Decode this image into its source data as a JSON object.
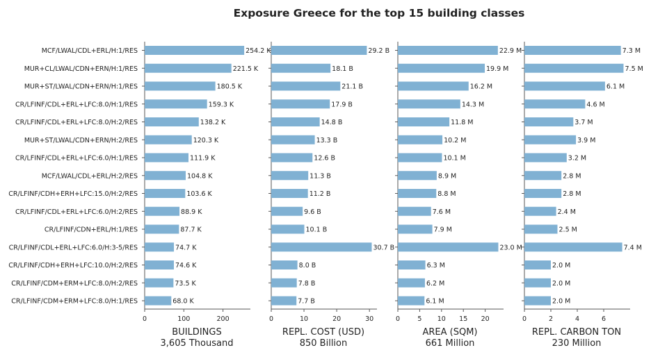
{
  "chart_data": {
    "type": "bar",
    "orientation": "horizontal",
    "title": "Exposure Greece for the top 15 building classes",
    "bar_color": "#80b1d3",
    "categories": [
      "MCF/LWAL/CDL+ERL/H:1/RES",
      "MUR+CL/LWAL/CDN+ERN/H:1/RES",
      "MUR+ST/LWAL/CDN+ERN/H:1/RES",
      "CR/LFINF/CDL+ERL+LFC:8.0/H:1/RES",
      "CR/LFINF/CDL+ERL+LFC:8.0/H:2/RES",
      "MUR+ST/LWAL/CDN+ERN/H:2/RES",
      "CR/LFINF/CDL+ERL+LFC:6.0/H:1/RES",
      "MCF/LWAL/CDL+ERL/H:2/RES",
      "CR/LFINF/CDH+ERH+LFC:15.0/H:2/RES",
      "CR/LFINF/CDL+ERL+LFC:6.0/H:2/RES",
      "CR/LFINF/CDN+ERL/H:1/RES",
      "CR/LFINF/CDL+ERL+LFC:6.0/H:3-5/RES",
      "CR/LFINF/CDH+ERH+LFC:10.0/H:2/RES",
      "CR/LFINF/CDM+ERM+LFC:8.0/H:2/RES",
      "CR/LFINF/CDM+ERM+LFC:8.0/H:1/RES"
    ],
    "panels": [
      {
        "xlabel": "BUILDINGS",
        "subtitle": "3,605 Thousand",
        "xlim": [
          0,
          270
        ],
        "ticks": [
          0,
          100,
          200
        ],
        "tick_labels": [
          "0",
          "100",
          "200"
        ],
        "values": [
          254.2,
          221.5,
          180.5,
          159.3,
          138.2,
          120.3,
          111.9,
          104.8,
          103.6,
          88.9,
          87.7,
          74.7,
          74.6,
          73.5,
          68.0
        ],
        "labels": [
          "254.2 K",
          "221.5 K",
          "180.5 K",
          "159.3 K",
          "138.2 K",
          "120.3 K",
          "111.9 K",
          "104.8 K",
          "103.6 K",
          "88.9 K",
          "87.7 K",
          "74.7 K",
          "74.6 K",
          "73.5 K",
          "68.0 K"
        ]
      },
      {
        "xlabel": "REPL. COST (USD)",
        "subtitle": "850 Billion",
        "xlim": [
          0,
          32.3
        ],
        "ticks": [
          0,
          10,
          20,
          30
        ],
        "tick_labels": [
          "0",
          "10",
          "20",
          "30"
        ],
        "values": [
          29.2,
          18.1,
          21.1,
          17.9,
          14.8,
          13.3,
          12.6,
          11.3,
          11.2,
          9.6,
          10.1,
          30.7,
          8.0,
          7.8,
          7.7
        ],
        "labels": [
          "29.2 B",
          "18.1 B",
          "21.1 B",
          "17.9 B",
          "14.8 B",
          "13.3 B",
          "12.6 B",
          "11.3 B",
          "11.2 B",
          "9.6 B",
          "10.1 B",
          "30.7 B",
          "8.0 B",
          "7.8 B",
          "7.7 B"
        ]
      },
      {
        "xlabel": "AREA (SQM)",
        "subtitle": "661 Million",
        "xlim": [
          0,
          24.2
        ],
        "ticks": [
          0,
          5,
          10,
          15,
          20
        ],
        "tick_labels": [
          "0",
          "5",
          "10",
          "15",
          "20"
        ],
        "values": [
          22.9,
          19.9,
          16.2,
          14.3,
          11.8,
          10.2,
          10.1,
          8.9,
          8.8,
          7.6,
          7.9,
          23.0,
          6.3,
          6.2,
          6.1
        ],
        "labels": [
          "22.9 M",
          "19.9 M",
          "16.2 M",
          "14.3 M",
          "11.8 M",
          "10.2 M",
          "10.1 M",
          "8.9 M",
          "8.8 M",
          "7.6 M",
          "7.9 M",
          "23.0 M",
          "6.3 M",
          "6.2 M",
          "6.1 M"
        ]
      },
      {
        "xlabel": "REPL. CARBON TON",
        "subtitle": "230 Million",
        "xlim": [
          0,
          8.0
        ],
        "ticks": [
          0,
          2,
          4,
          6
        ],
        "tick_labels": [
          "0",
          "2",
          "4",
          "6"
        ],
        "values": [
          7.3,
          7.5,
          6.1,
          4.6,
          3.7,
          3.9,
          3.2,
          2.8,
          2.8,
          2.4,
          2.5,
          7.4,
          2.0,
          2.0,
          2.0
        ],
        "labels": [
          "7.3 M",
          "7.5 M",
          "6.1 M",
          "4.6 M",
          "3.7 M",
          "3.9 M",
          "3.2 M",
          "2.8 M",
          "2.8 M",
          "2.4 M",
          "2.5 M",
          "7.4 M",
          "2.0 M",
          "2.0 M",
          "2.0 M"
        ]
      }
    ]
  }
}
